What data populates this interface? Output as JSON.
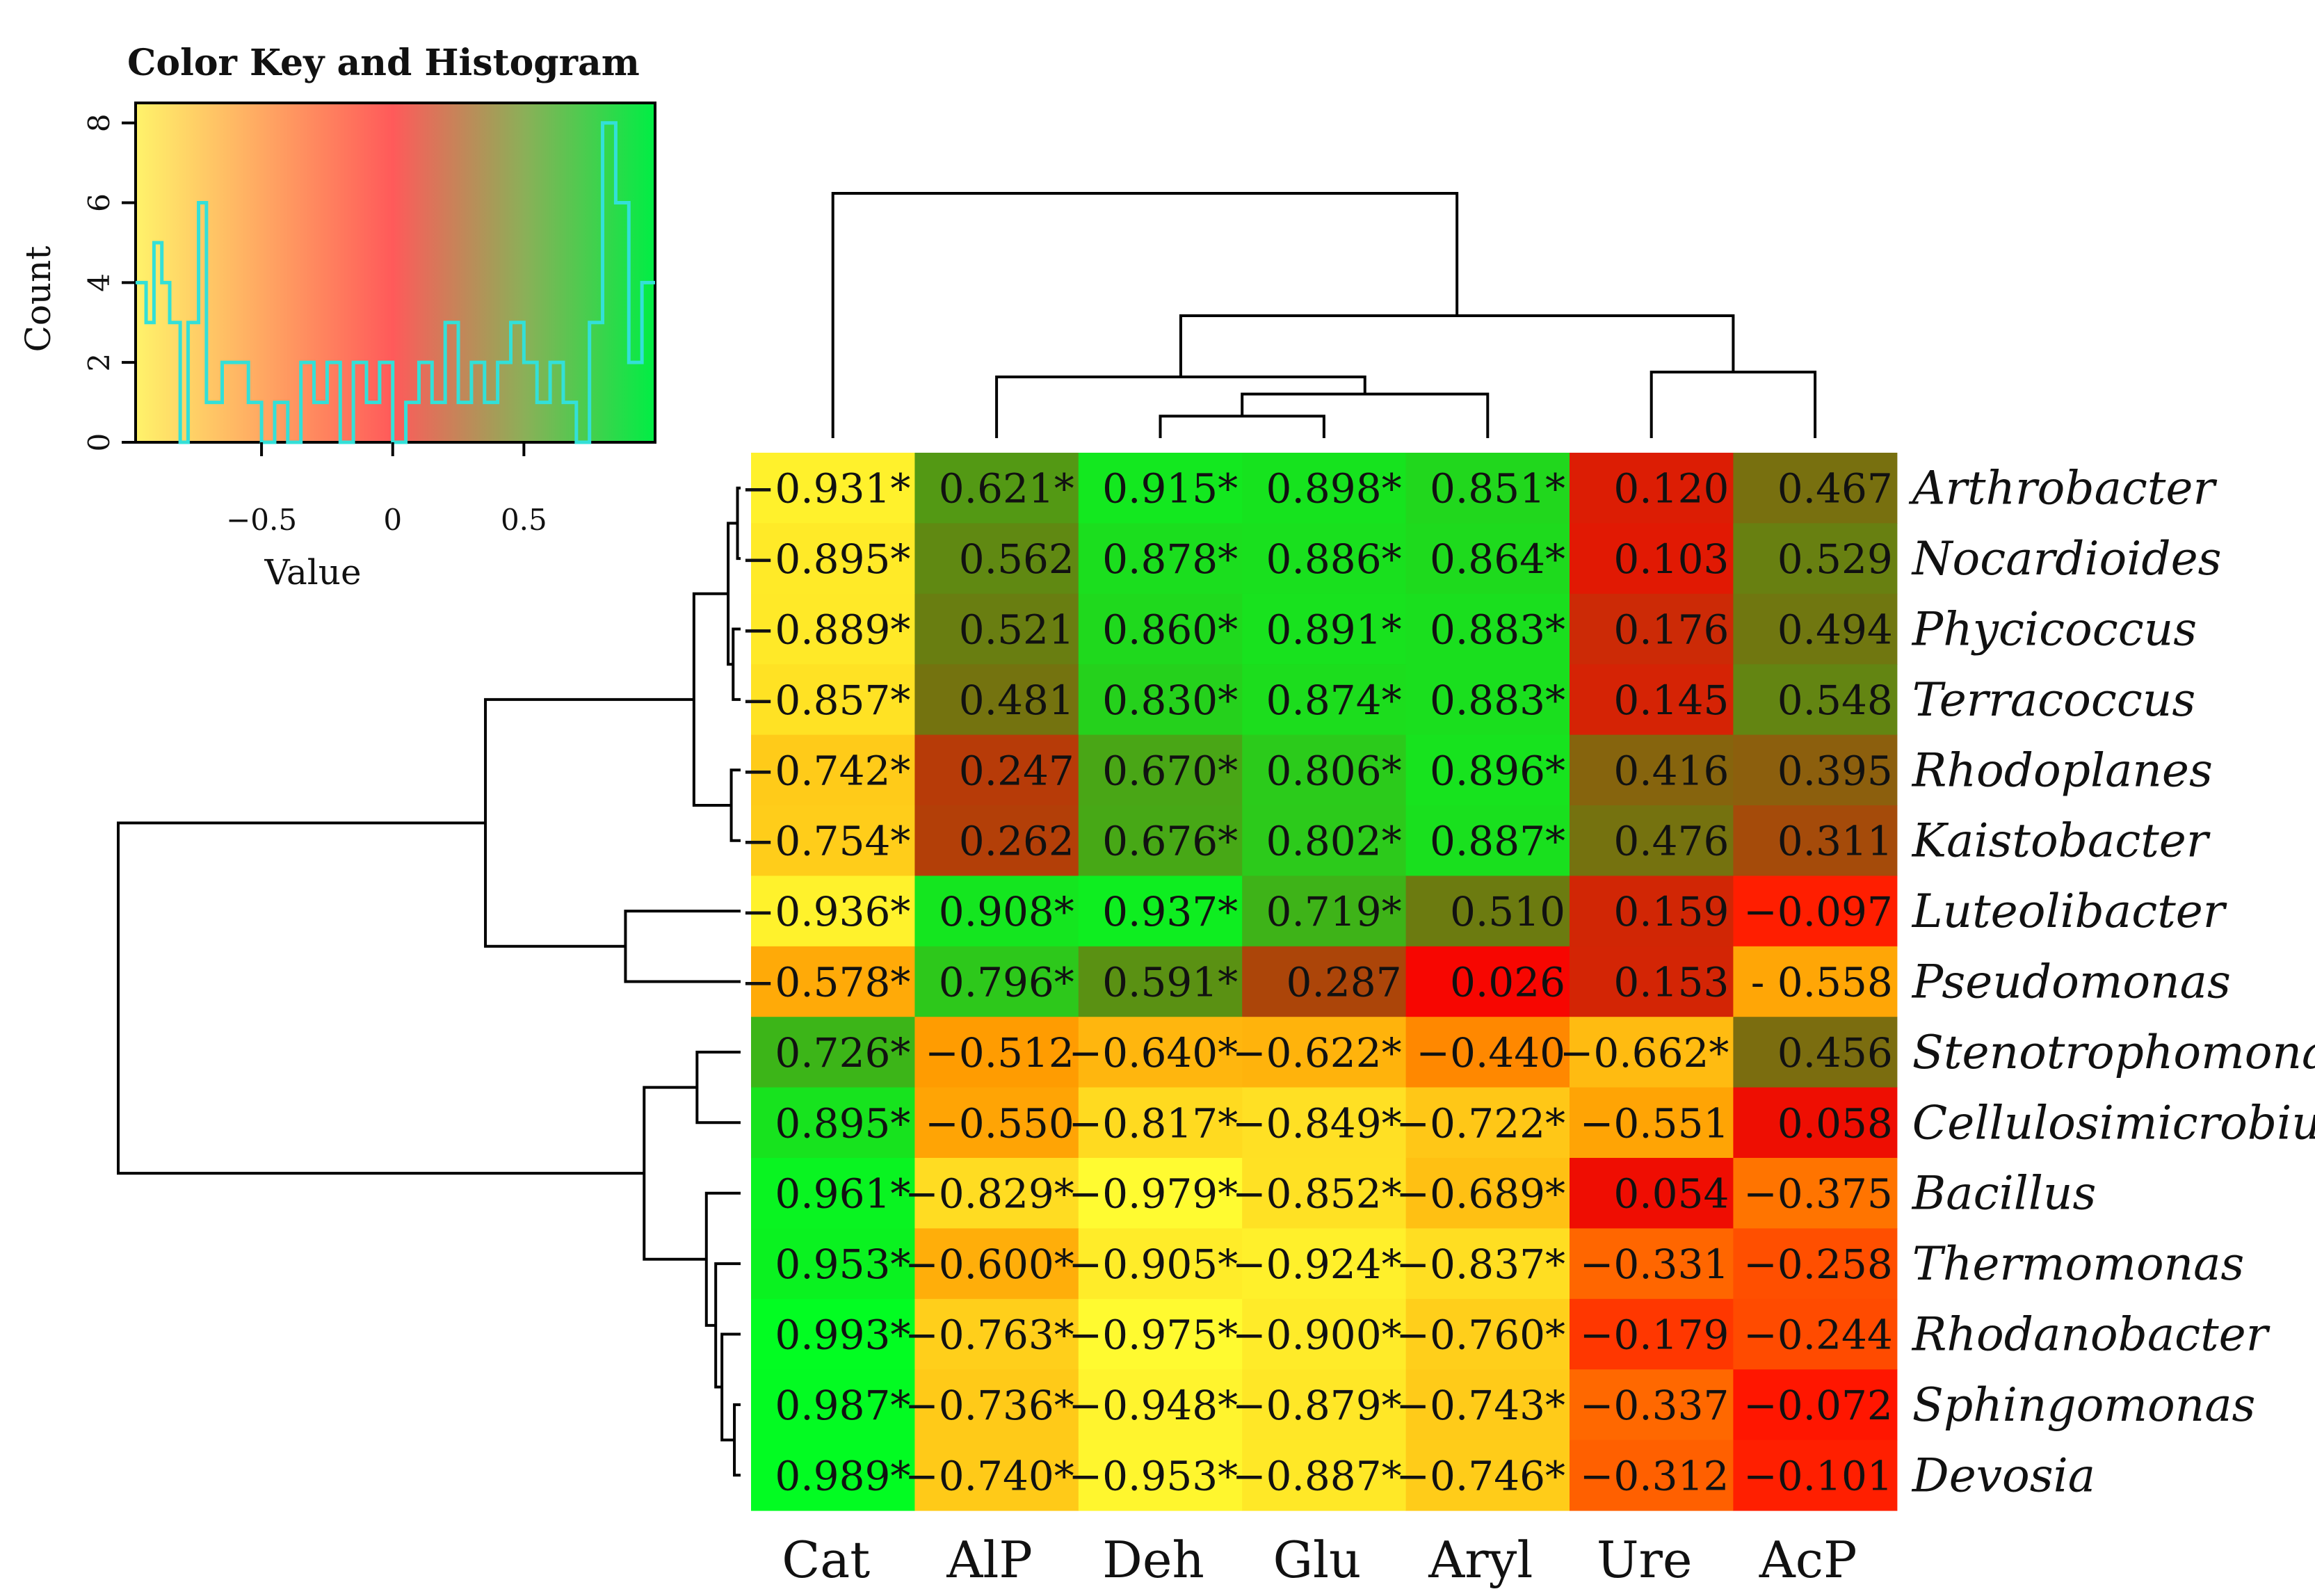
{
  "chart_data": {
    "type": "heatmap",
    "title": "",
    "columns": [
      "Cat",
      "AlP",
      "Deh",
      "Glu",
      "Aryl",
      "Ure",
      "AcP"
    ],
    "rows": [
      {
        "label": "Arthrobacter",
        "values": [
          -0.931,
          0.621,
          0.915,
          0.898,
          0.851,
          0.12,
          0.467
        ],
        "display": [
          "−0.931*",
          "0.621*",
          "0.915*",
          "0.898*",
          "0.851*",
          "0.120",
          "0.467"
        ]
      },
      {
        "label": "Nocardioides",
        "values": [
          -0.895,
          0.562,
          0.878,
          0.886,
          0.864,
          0.103,
          0.529
        ],
        "display": [
          "−0.895*",
          "0.562",
          "0.878*",
          "0.886*",
          "0.864*",
          "0.103",
          "0.529"
        ]
      },
      {
        "label": "Phycicoccus",
        "values": [
          -0.889,
          0.521,
          0.86,
          0.891,
          0.883,
          0.176,
          0.494
        ],
        "display": [
          "−0.889*",
          "0.521",
          "0.860*",
          "0.891*",
          "0.883*",
          "0.176",
          "0.494"
        ]
      },
      {
        "label": "Terracoccus",
        "values": [
          -0.857,
          0.481,
          0.83,
          0.874,
          0.883,
          0.145,
          0.548
        ],
        "display": [
          "−0.857*",
          "0.481",
          "0.830*",
          "0.874*",
          "0.883*",
          "0.145",
          "0.548"
        ]
      },
      {
        "label": "Rhodoplanes",
        "values": [
          -0.742,
          0.247,
          0.67,
          0.806,
          0.896,
          0.416,
          0.395
        ],
        "display": [
          "−0.742*",
          "0.247",
          "0.670*",
          "0.806*",
          "0.896*",
          "0.416",
          "0.395"
        ]
      },
      {
        "label": "Kaistobacter",
        "values": [
          -0.754,
          0.262,
          0.676,
          0.802,
          0.887,
          0.476,
          0.311
        ],
        "display": [
          "−0.754*",
          "0.262",
          "0.676*",
          "0.802*",
          "0.887*",
          "0.476",
          "0.311"
        ]
      },
      {
        "label": "Luteolibacter",
        "values": [
          -0.936,
          0.908,
          0.937,
          0.719,
          0.51,
          0.159,
          -0.097
        ],
        "display": [
          "−0.936*",
          "0.908*",
          "0.937*",
          "0.719*",
          "0.510",
          "0.159",
          "−0.097"
        ]
      },
      {
        "label": "Pseudomonas",
        "values": [
          -0.578,
          0.796,
          0.591,
          0.287,
          0.026,
          0.153,
          -0.558
        ],
        "display": [
          "−0.578*",
          "0.796*",
          "0.591*",
          "0.287",
          "0.026",
          "0.153",
          "- 0.558"
        ]
      },
      {
        "label": "Stenotrophomonas",
        "values": [
          0.726,
          -0.512,
          -0.64,
          -0.622,
          -0.44,
          -0.662,
          0.456
        ],
        "display": [
          "0.726*",
          "−0.512",
          "−0.640*",
          "−0.622*",
          "−0.440",
          "−0.662*",
          "0.456"
        ]
      },
      {
        "label": "Cellulosimicrobium",
        "values": [
          0.895,
          -0.55,
          -0.817,
          -0.849,
          -0.722,
          -0.551,
          0.058
        ],
        "display": [
          "0.895*",
          "−0.550",
          "−0.817*",
          "−0.849*",
          "−0.722*",
          "−0.551",
          "0.058"
        ]
      },
      {
        "label": "Bacillus",
        "values": [
          0.961,
          -0.829,
          -0.979,
          -0.852,
          -0.689,
          0.054,
          -0.375
        ],
        "display": [
          "0.961*",
          "−0.829*",
          "−0.979*",
          "−0.852*",
          "−0.689*",
          "0.054",
          "−0.375"
        ]
      },
      {
        "label": "Thermomonas",
        "values": [
          0.953,
          -0.6,
          -0.905,
          -0.924,
          -0.837,
          -0.331,
          -0.258
        ],
        "display": [
          "0.953*",
          "−0.600*",
          "−0.905*",
          "−0.924*",
          "−0.837*",
          "−0.331",
          "−0.258"
        ]
      },
      {
        "label": "Rhodanobacter",
        "values": [
          0.993,
          -0.763,
          -0.975,
          -0.9,
          -0.76,
          -0.179,
          -0.244
        ],
        "display": [
          "0.993*",
          "−0.763*",
          "−0.975*",
          "−0.900*",
          "−0.760*",
          "−0.179",
          "−0.244"
        ]
      },
      {
        "label": "Sphingomonas",
        "values": [
          0.987,
          -0.736,
          -0.948,
          -0.879,
          -0.743,
          -0.337,
          -0.072
        ],
        "display": [
          "0.987*",
          "−0.736*",
          "−0.948*",
          "−0.879*",
          "−0.743*",
          "−0.337",
          "−0.072"
        ]
      },
      {
        "label": "Devosia",
        "values": [
          0.989,
          -0.74,
          -0.953,
          -0.887,
          -0.746,
          -0.312,
          -0.101
        ],
        "display": [
          "0.989*",
          "−0.740*",
          "−0.953*",
          "−0.887*",
          "−0.746*",
          "−0.312",
          "−0.101"
        ]
      }
    ],
    "color_key": {
      "title": "Color Key and Histogram",
      "xlabel": "Value",
      "ylabel": "Count",
      "xlim": [
        -0.98,
        1.0
      ],
      "ylim": [
        0,
        8.5
      ],
      "x_ticks": [
        -0.5,
        0,
        0.5
      ],
      "x_tick_labels": [
        "−0.5",
        "0",
        "0.5"
      ],
      "y_ticks": [
        0,
        2,
        4,
        6,
        8
      ],
      "y_tick_labels": [
        "0",
        "2",
        "4",
        "6",
        "8"
      ],
      "histogram_color": "#33e0d8",
      "histogram_steps": [
        [
          -0.98,
          4
        ],
        [
          -0.94,
          3
        ],
        [
          -0.91,
          5
        ],
        [
          -0.88,
          4
        ],
        [
          -0.85,
          3
        ],
        [
          -0.81,
          0
        ],
        [
          -0.78,
          3
        ],
        [
          -0.74,
          6
        ],
        [
          -0.71,
          1
        ],
        [
          -0.68,
          1
        ],
        [
          -0.65,
          2
        ],
        [
          -0.6,
          2
        ],
        [
          -0.55,
          1
        ],
        [
          -0.5,
          0
        ],
        [
          -0.45,
          1
        ],
        [
          -0.4,
          0
        ],
        [
          -0.35,
          2
        ],
        [
          -0.3,
          1
        ],
        [
          -0.25,
          2
        ],
        [
          -0.2,
          0
        ],
        [
          -0.15,
          2
        ],
        [
          -0.1,
          1
        ],
        [
          -0.05,
          2
        ],
        [
          0.0,
          0
        ],
        [
          0.05,
          1
        ],
        [
          0.1,
          2
        ],
        [
          0.15,
          1
        ],
        [
          0.2,
          3
        ],
        [
          0.25,
          1
        ],
        [
          0.3,
          2
        ],
        [
          0.35,
          1
        ],
        [
          0.4,
          2
        ],
        [
          0.45,
          3
        ],
        [
          0.5,
          2
        ],
        [
          0.55,
          1
        ],
        [
          0.6,
          2
        ],
        [
          0.65,
          1
        ],
        [
          0.7,
          0
        ],
        [
          0.75,
          3
        ],
        [
          0.8,
          8
        ],
        [
          0.85,
          6
        ],
        [
          0.9,
          2
        ],
        [
          0.95,
          4
        ],
        [
          1.0,
          4
        ]
      ]
    },
    "color_scale": [
      {
        "value": -1.0,
        "color": "#ffff33"
      },
      {
        "value": -0.5,
        "color": "#ff9a00"
      },
      {
        "value": 0.0,
        "color": "#ff0000"
      },
      {
        "value": 0.5,
        "color": "#6e7810"
      },
      {
        "value": 1.0,
        "color": "#00ff22"
      }
    ],
    "key_gradient": [
      {
        "value": -1.0,
        "color": "#fff36a"
      },
      {
        "value": 0.0,
        "color": "#ff5a5a"
      },
      {
        "value": 0.5,
        "color": "#8caf58"
      },
      {
        "value": 1.0,
        "color": "#00ee44"
      }
    ],
    "column_dendrogram": [
      {
        "left": "Cat",
        "right": [
          "AlP",
          "Deh",
          "Glu",
          "Aryl",
          "Ure",
          "AcP"
        ],
        "height": 1.0
      },
      {
        "left": [
          "AlP",
          "Deh",
          "Glu",
          "Aryl"
        ],
        "right": [
          "Ure",
          "AcP"
        ],
        "height": 0.5
      },
      {
        "left": "AlP",
        "right": [
          "Deh",
          "Glu",
          "Aryl"
        ],
        "height": 0.25
      },
      {
        "left": [
          "Deh",
          "Glu"
        ],
        "right": "Aryl",
        "height": 0.18
      },
      {
        "left": "Deh",
        "right": "Glu",
        "height": 0.09
      },
      {
        "left": "Ure",
        "right": "AcP",
        "height": 0.27
      }
    ],
    "row_dendrogram": [
      {
        "members": "all",
        "height": 1.0
      },
      {
        "members": [
          "Arthrobacter",
          "Nocardioides",
          "Phycicoccus",
          "Terracoccus",
          "Rhodoplanes",
          "Kaistobacter",
          "Luteolibacter",
          "Pseudomonas"
        ],
        "height": 0.41
      },
      {
        "members": [
          "Arthrobacter",
          "Nocardioides",
          "Phycicoccus",
          "Terracoccus",
          "Rhodoplanes",
          "Kaistobacter"
        ],
        "height": 0.16
      },
      {
        "members": [
          "Luteolibacter",
          "Pseudomonas"
        ],
        "height": 0.2
      },
      {
        "members": [
          "Stenotrophomonas",
          "Cellulosimicrobium",
          "Bacillus",
          "Thermomonas",
          "Rhodanobacter",
          "Sphingomonas",
          "Devosia"
        ],
        "height": 0.3
      },
      {
        "members": [
          "Stenotrophomonas",
          "Cellulosimicrobium"
        ],
        "height": 0.15
      },
      {
        "members": [
          "Bacillus",
          "Thermomonas",
          "Rhodanobacter",
          "Sphingomonas",
          "Devosia"
        ],
        "height": 0.12
      }
    ]
  }
}
